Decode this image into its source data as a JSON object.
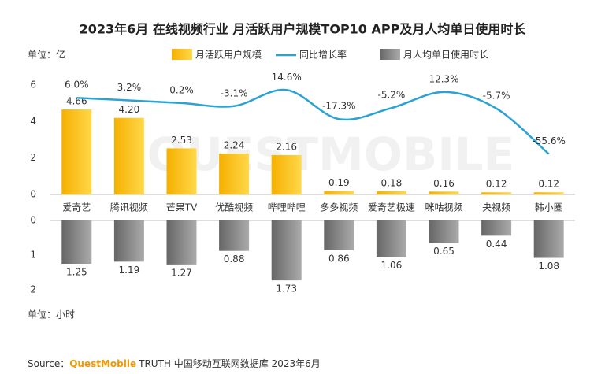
{
  "chart_data": [
    {
      "type": "bar",
      "title": "2023年6月 在线视频行业 月活跃用户规模TOP10 APP及月人均单日使用时长",
      "unit": "单位：亿",
      "categories": [
        "爱奇艺",
        "腾讯视频",
        "芒果TV",
        "优酷视频",
        "哔哩哔哩",
        "多多视频",
        "爱奇艺极速",
        "咪咕视频",
        "央视频",
        "韩小圈"
      ],
      "series": [
        {
          "name": "月活跃用户规模",
          "type": "bar",
          "color": "#f9b90c",
          "values": [
            4.66,
            4.2,
            2.53,
            2.24,
            2.16,
            0.19,
            0.18,
            0.16,
            0.12,
            0.12
          ],
          "value_labels": [
            "4.66",
            "4.20",
            "2.53",
            "2.24",
            "2.16",
            "0.19",
            "0.18",
            "0.16",
            "0.12",
            "0.12"
          ]
        },
        {
          "name": "同比增长率",
          "type": "line",
          "axis": "y2",
          "color": "#2aa3d2",
          "values": [
            6.0,
            3.2,
            0.2,
            -3.1,
            14.6,
            -17.3,
            -5.2,
            12.3,
            -5.7,
            -55.6
          ],
          "value_labels": [
            "6.0%",
            "3.2%",
            "0.2%",
            "-3.1%",
            "14.6%",
            "-17.3%",
            "-5.2%",
            "12.3%",
            "-5.7%",
            "-55.6%"
          ]
        }
      ],
      "ylim": [
        0,
        6
      ],
      "yticks": [
        0,
        2,
        4,
        6
      ],
      "y2lim": [
        -100,
        20
      ]
    },
    {
      "type": "bar",
      "unit": "单位：小时",
      "inverted": true,
      "series": [
        {
          "name": "月人均单日使用时长",
          "type": "bar",
          "color": "#7f7f7f",
          "values": [
            1.25,
            1.19,
            1.27,
            0.88,
            1.73,
            0.86,
            1.06,
            0.65,
            0.44,
            1.08
          ]
        }
      ],
      "ylim": [
        0,
        2
      ],
      "yticks": [
        0,
        1,
        2
      ]
    }
  ],
  "watermark": "QUESTMOBILE",
  "source": {
    "label": "Source：",
    "brand": "QuestMobile",
    "text": "TRUTH 中国移动互联网数据库 2023年6月"
  }
}
